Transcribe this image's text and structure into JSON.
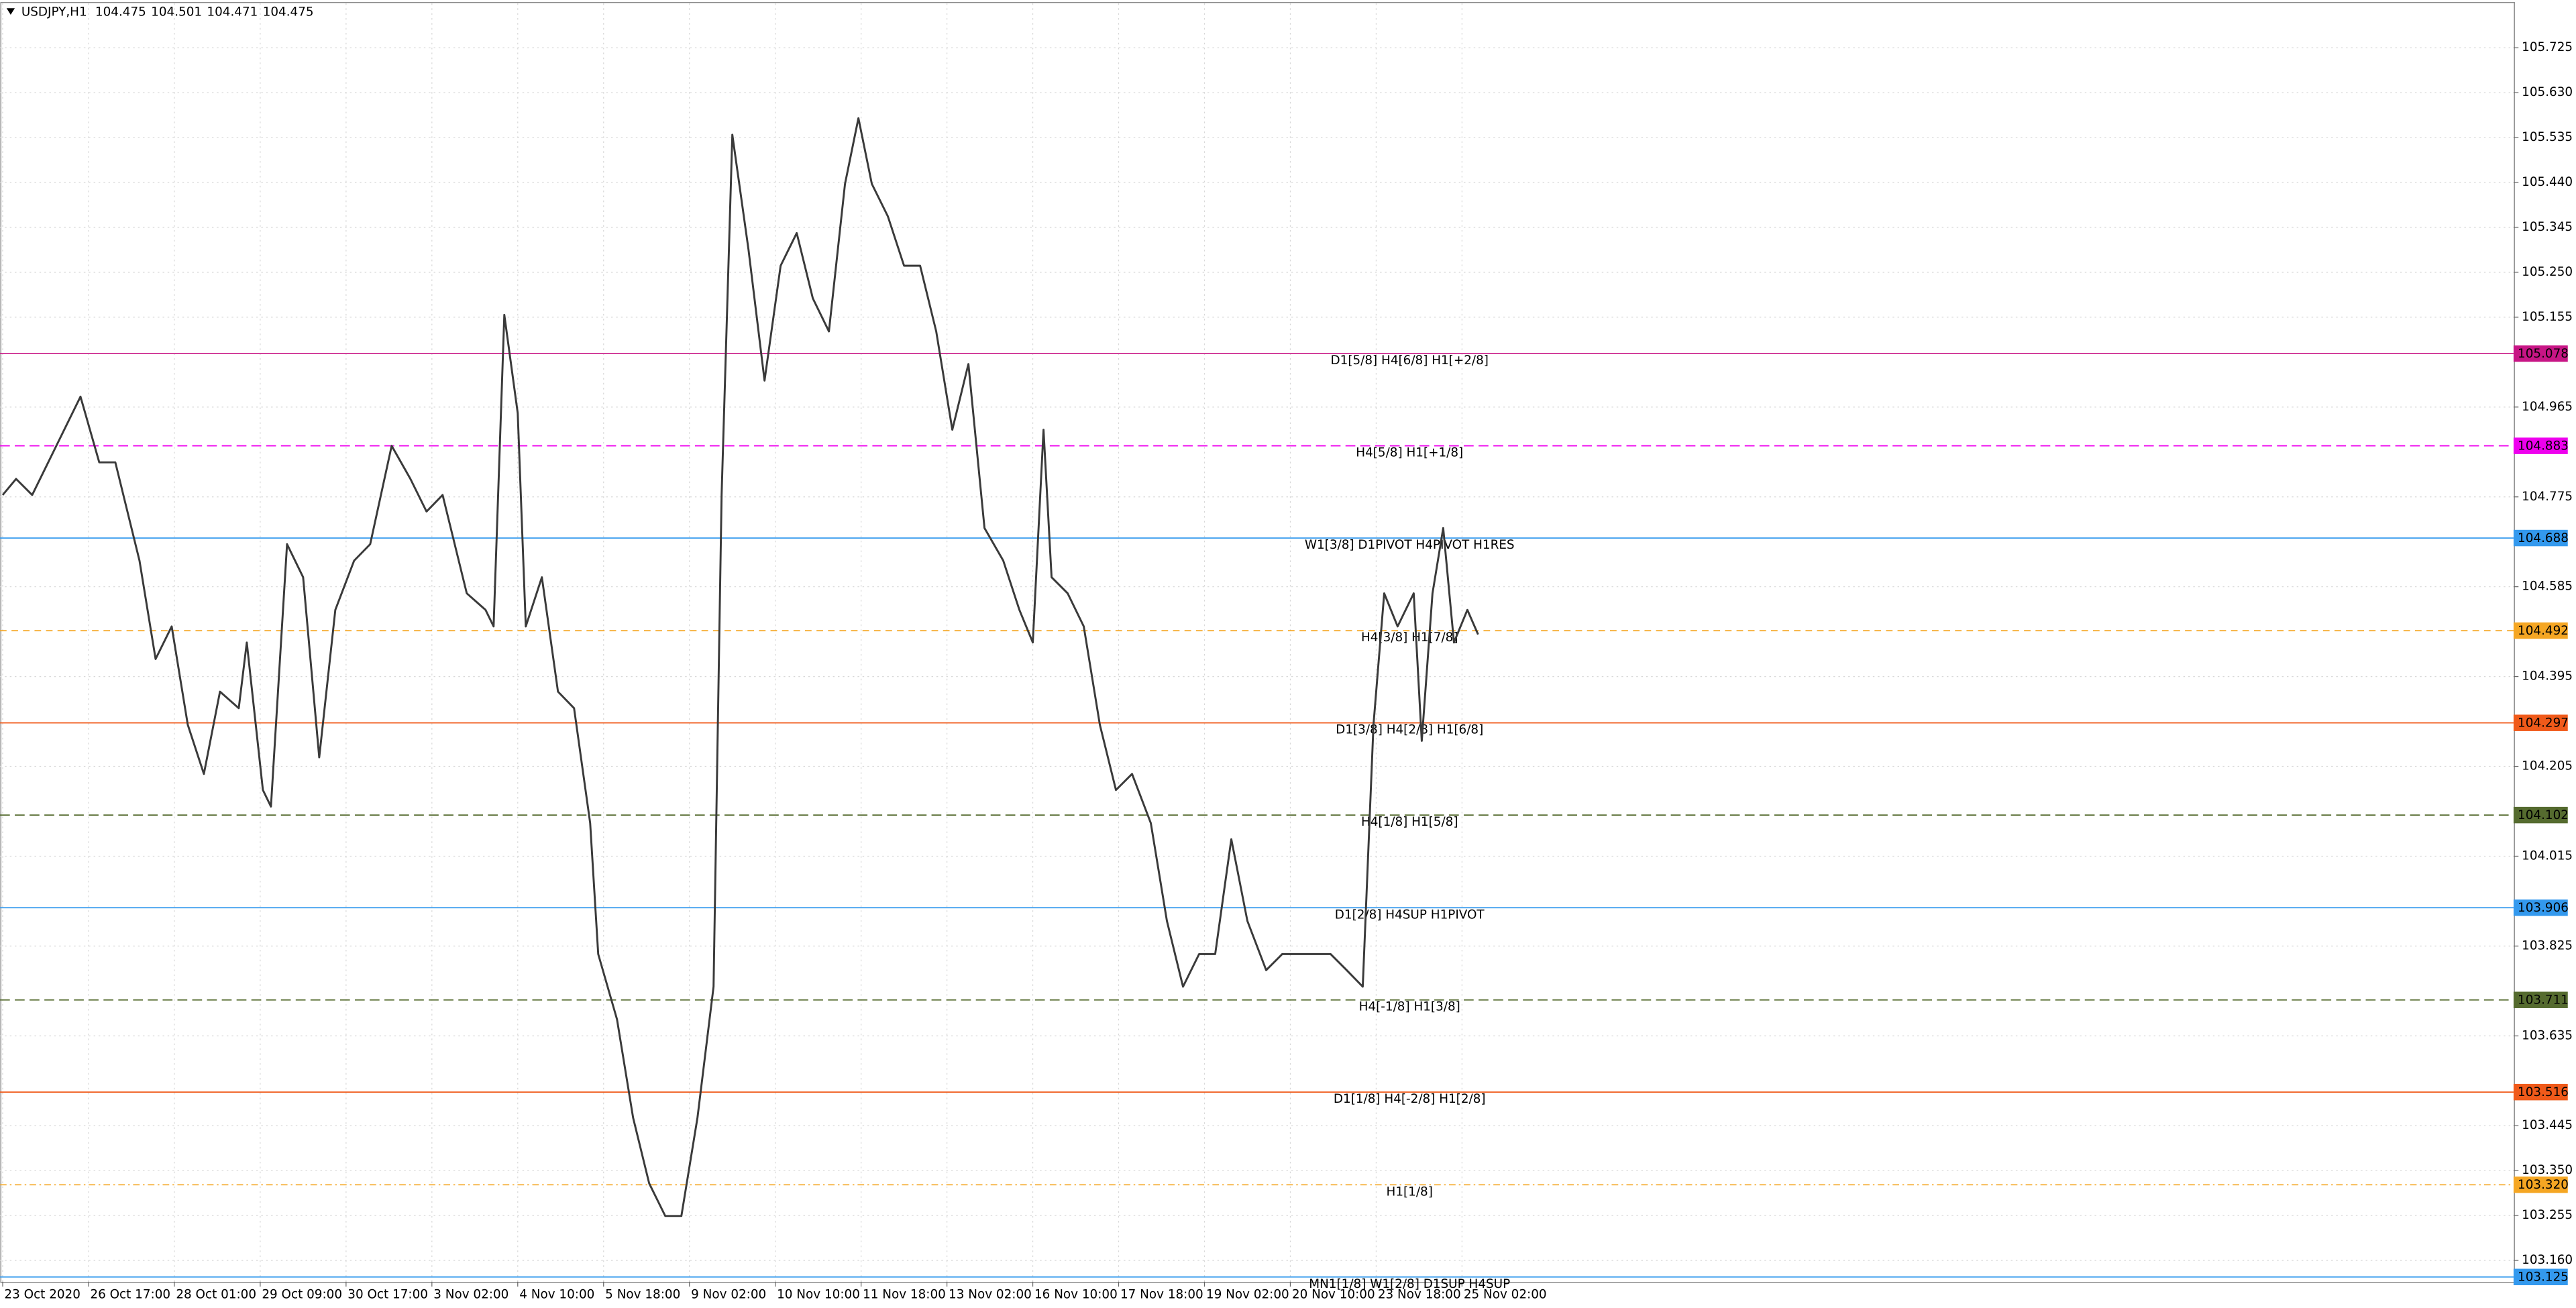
{
  "chart_data": {
    "type": "line",
    "title": "USDJPY,H1",
    "ohlc": [
      104.475,
      104.501,
      104.471,
      104.475
    ],
    "color": "#3a3a3a",
    "grid": true,
    "xlim": [
      -1,
      936
    ],
    "ylim": [
      103.115,
      105.819
    ],
    "xticks": [
      {
        "value": 0,
        "label": "23 Oct 2020"
      },
      {
        "value": 32,
        "label": "26 Oct 17:00"
      },
      {
        "value": 64,
        "label": "28 Oct 01:00"
      },
      {
        "value": 96,
        "label": "29 Oct 09:00"
      },
      {
        "value": 128,
        "label": "30 Oct 17:00"
      },
      {
        "value": 160,
        "label": "3 Nov 02:00"
      },
      {
        "value": 192,
        "label": "4 Nov 10:00"
      },
      {
        "value": 224,
        "label": "5 Nov 18:00"
      },
      {
        "value": 256,
        "label": "9 Nov 02:00"
      },
      {
        "value": 288,
        "label": "10 Nov 10:00"
      },
      {
        "value": 320,
        "label": "11 Nov 18:00"
      },
      {
        "value": 352,
        "label": "13 Nov 02:00"
      },
      {
        "value": 384,
        "label": "16 Nov 10:00"
      },
      {
        "value": 416,
        "label": "17 Nov 18:00"
      },
      {
        "value": 448,
        "label": "19 Nov 02:00"
      },
      {
        "value": 480,
        "label": "20 Nov 10:00"
      },
      {
        "value": 512,
        "label": "23 Nov 18:00"
      },
      {
        "value": 544,
        "label": "25 Nov 02:00"
      }
    ],
    "yticks": [
      {
        "value": 105.725,
        "label": "105.725"
      },
      {
        "value": 105.63,
        "label": "105.630"
      },
      {
        "value": 105.535,
        "label": "105.535"
      },
      {
        "value": 105.44,
        "label": "105.440"
      },
      {
        "value": 105.345,
        "label": "105.345"
      },
      {
        "value": 105.25,
        "label": "105.250"
      },
      {
        "value": 105.155,
        "label": "105.155"
      },
      {
        "value": 104.965,
        "label": "104.965"
      },
      {
        "value": 104.775,
        "label": "104.775"
      },
      {
        "value": 104.585,
        "label": "104.585"
      },
      {
        "value": 104.395,
        "label": "104.395"
      },
      {
        "value": 104.205,
        "label": "104.205"
      },
      {
        "value": 104.015,
        "label": "104.015"
      },
      {
        "value": 103.825,
        "label": "103.825"
      },
      {
        "value": 103.635,
        "label": "103.635"
      },
      {
        "value": 103.445,
        "label": "103.445"
      },
      {
        "value": 103.35,
        "label": "103.350"
      },
      {
        "value": 103.255,
        "label": "103.255"
      },
      {
        "value": 103.16,
        "label": "103.160"
      }
    ],
    "x": [
      0,
      5,
      11,
      20,
      29,
      36,
      42,
      51,
      57,
      63,
      69,
      75,
      81,
      88,
      91,
      97,
      100,
      106,
      112,
      118,
      124,
      131,
      137,
      145,
      152,
      158,
      164,
      173,
      180,
      183,
      187,
      192,
      195,
      201,
      207,
      213,
      219,
      222,
      229,
      235,
      241,
      247,
      253,
      259,
      265,
      268,
      272,
      278,
      284,
      290,
      296,
      302,
      308,
      314,
      319,
      324,
      330,
      336,
      342,
      348,
      354,
      360,
      366,
      373,
      379,
      384,
      388,
      391,
      397,
      403,
      409,
      415,
      421,
      428,
      434,
      440,
      446,
      452,
      458,
      464,
      471,
      477,
      483,
      489,
      495,
      501,
      507,
      511,
      515,
      520,
      526,
      529,
      533,
      537,
      541,
      546,
      550
    ],
    "values": [
      104.779,
      104.813,
      104.779,
      104.883,
      104.987,
      104.848,
      104.848,
      104.64,
      104.432,
      104.501,
      104.293,
      104.189,
      104.363,
      104.328,
      104.467,
      104.155,
      104.12,
      104.675,
      104.605,
      104.224,
      104.536,
      104.64,
      104.675,
      104.883,
      104.813,
      104.744,
      104.779,
      104.571,
      104.536,
      104.501,
      105.16,
      104.952,
      104.501,
      104.605,
      104.363,
      104.328,
      104.085,
      103.808,
      103.67,
      103.462,
      103.323,
      103.254,
      103.254,
      103.462,
      103.739,
      104.779,
      105.541,
      105.299,
      105.021,
      105.264,
      105.333,
      105.195,
      105.125,
      105.437,
      105.576,
      105.437,
      105.368,
      105.264,
      105.264,
      105.125,
      104.917,
      105.056,
      104.709,
      104.64,
      104.536,
      104.467,
      104.917,
      104.605,
      104.571,
      104.501,
      104.293,
      104.155,
      104.189,
      104.085,
      103.878,
      103.739,
      103.808,
      103.808,
      104.051,
      103.878,
      103.774,
      103.808,
      103.808,
      103.808,
      103.808,
      103.774,
      103.739,
      104.293,
      104.571,
      104.501,
      104.571,
      104.259,
      104.571,
      104.709,
      104.467,
      104.536,
      104.484
    ],
    "levels": [
      {
        "name": "D1[5/8] H4[6/8] H1[+2/8]",
        "value": 105.078,
        "value_label": "105.078",
        "color": "#c71585",
        "dash": "none"
      },
      {
        "name": "H4[5/8] H1[+1/8]",
        "value": 104.883,
        "value_label": "104.883",
        "color": "#ee00ee",
        "dash": "6 3"
      },
      {
        "name": "W1[3/8] D1PIVOT H4PIVOT H1RES",
        "value": 104.688,
        "value_label": "104.688",
        "color": "#3399ee",
        "dash": "none"
      },
      {
        "name": "H4[3/8] H1[7/8]",
        "value": 104.492,
        "value_label": "104.492",
        "color": "#f5a623",
        "dash": "4 3"
      },
      {
        "name": "D1[3/8] H4[2/8] H1[6/8]",
        "value": 104.297,
        "value_label": "104.297",
        "color": "#f05a1a",
        "dash": "none"
      },
      {
        "name": "H4[1/8] H1[5/8]",
        "value": 104.102,
        "value_label": "104.102",
        "color": "#556b2f",
        "dash": "6 3"
      },
      {
        "name": "D1[2/8] H4SUP H1PIVOT",
        "value": 103.906,
        "value_label": "103.906",
        "color": "#3399ee",
        "dash": "none"
      },
      {
        "name": "H4[-1/8] H1[3/8]",
        "value": 103.711,
        "value_label": "103.711",
        "color": "#556b2f",
        "dash": "6 3"
      },
      {
        "name": "D1[1/8] H4[-2/8] H1[2/8]",
        "value": 103.516,
        "value_label": "103.516",
        "color": "#f05a1a",
        "dash": "none"
      },
      {
        "name": "H1[1/8]",
        "value": 103.32,
        "value_label": "103.320",
        "color": "#f5a623",
        "dash": "4 2 1 2"
      },
      {
        "name": "MN1[1/8] W1[2/8] D1SUP H4SUP",
        "value": 103.125,
        "value_label": "103.125",
        "color": "#3399ee",
        "dash": "none"
      }
    ]
  }
}
